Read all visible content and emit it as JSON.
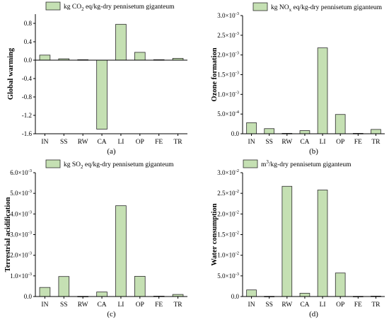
{
  "chart_data": [
    {
      "type": "bar",
      "panel": "(a)",
      "legend_label": "kg CO2 eq/kg-dry pennisetum giganteum",
      "legend_main": "kg CO",
      "legend_sub": "2",
      "legend_rest": " eq/kg-dry pennisetum giganteum",
      "ylabel": "Global warming",
      "categories": [
        "IN",
        "SS",
        "RW",
        "CA",
        "LI",
        "OP",
        "FE",
        "TR"
      ],
      "values": [
        0.11,
        0.03,
        0.01,
        -1.5,
        0.78,
        0.17,
        0.01,
        0.04
      ],
      "ylim": [
        -1.6,
        1.0
      ],
      "yticks": [
        {
          "v": -1.6,
          "label": "-1.6"
        },
        {
          "v": -1.2,
          "label": "-1.2"
        },
        {
          "v": -0.8,
          "label": "-0.8"
        },
        {
          "v": -0.4,
          "label": "-0.4"
        },
        {
          "v": 0.0,
          "label": "0.0"
        },
        {
          "v": 0.4,
          "label": "0.4"
        },
        {
          "v": 0.8,
          "label": "0.8"
        }
      ],
      "bar_color": "#c5e0b3"
    },
    {
      "type": "bar",
      "panel": "(b)",
      "legend_label": "kg NOx eq/kg-dry pennisetum giganteum",
      "legend_main": "kg NO",
      "legend_sub": "x",
      "legend_rest": " eq/kg-dry pennisetum giganteum",
      "ylabel": "Ozone formation",
      "categories": [
        "IN",
        "SS",
        "RW",
        "CA",
        "LI",
        "OP",
        "FE",
        "TR"
      ],
      "values": [
        0.00028,
        0.00013,
        1e-05,
        8e-05,
        0.00218,
        0.00049,
        1e-05,
        0.00011
      ],
      "ylim": [
        0,
        0.003
      ],
      "yticks": [
        {
          "v": 0,
          "label": "0.0"
        },
        {
          "v": 0.0005,
          "label": "5.0×10",
          "exp": "-4"
        },
        {
          "v": 0.001,
          "label": "1.0×10",
          "exp": "-3"
        },
        {
          "v": 0.0015,
          "label": "1.5×10",
          "exp": "-3"
        },
        {
          "v": 0.002,
          "label": "2.0×10",
          "exp": "-3"
        },
        {
          "v": 0.0025,
          "label": "2.5×10",
          "exp": "-3"
        },
        {
          "v": 0.003,
          "label": "3.0×10",
          "exp": "-3"
        }
      ],
      "bar_color": "#c5e0b3"
    },
    {
      "type": "bar",
      "panel": "(c)",
      "legend_label": "kg SO2 eq/kg-dry pennisetum giganteum",
      "legend_main": "kg SO",
      "legend_sub": "2",
      "legend_rest": " eq/kg-dry pennisetum giganteum",
      "ylabel": "Terrestrial acidification",
      "categories": [
        "IN",
        "SS",
        "RW",
        "CA",
        "LI",
        "OP",
        "FE",
        "TR"
      ],
      "values": [
        0.00044,
        0.00097,
        1e-05,
        0.00022,
        0.0044,
        0.00098,
        2e-05,
        0.0001
      ],
      "ylim": [
        0,
        0.006
      ],
      "yticks": [
        {
          "v": 0,
          "label": "0.0"
        },
        {
          "v": 0.001,
          "label": "1.0×10",
          "exp": "-3"
        },
        {
          "v": 0.002,
          "label": "2.0×10",
          "exp": "-3"
        },
        {
          "v": 0.003,
          "label": "3.0×10",
          "exp": "-3"
        },
        {
          "v": 0.004,
          "label": "4.0×10",
          "exp": "-3"
        },
        {
          "v": 0.005,
          "label": "5.0×10",
          "exp": "-3"
        },
        {
          "v": 0.006,
          "label": "6.0×10",
          "exp": "-3"
        }
      ],
      "bar_color": "#c5e0b3"
    },
    {
      "type": "bar",
      "panel": "(d)",
      "legend_label": "m3/kg-dry pennisetum giganteum",
      "legend_main": "m",
      "legend_sup": "3",
      "legend_rest": "/kg-dry pennisetum giganteum",
      "ylabel": "Water consumption",
      "categories": [
        "IN",
        "SS",
        "RW",
        "CA",
        "LI",
        "OP",
        "FE",
        "TR"
      ],
      "values": [
        0.0016,
        5e-05,
        0.0267,
        0.0008,
        0.0258,
        0.0057,
        5e-05,
        0.0001
      ],
      "ylim": [
        0,
        0.03
      ],
      "yticks": [
        {
          "v": 0,
          "label": "0.0"
        },
        {
          "v": 0.005,
          "label": "5.0×10",
          "exp": "-3"
        },
        {
          "v": 0.01,
          "label": "1.0×10",
          "exp": "-2"
        },
        {
          "v": 0.015,
          "label": "1.5×10",
          "exp": "-2"
        },
        {
          "v": 0.02,
          "label": "2.0×10",
          "exp": "-2"
        },
        {
          "v": 0.025,
          "label": "2.5×10",
          "exp": "-2"
        },
        {
          "v": 0.03,
          "label": "3.0×10",
          "exp": "-2"
        }
      ],
      "bar_color": "#c5e0b3"
    }
  ]
}
